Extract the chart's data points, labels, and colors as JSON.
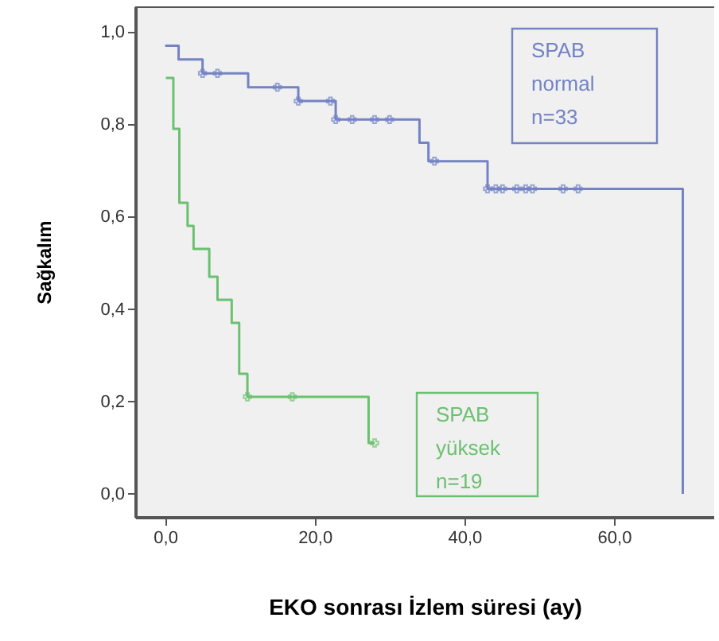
{
  "chart_data": {
    "type": "step",
    "xlabel": "EKO sonrası İzlem süresi (ay)",
    "ylabel": "Sağkalım",
    "xlim": [
      -4,
      73.4
    ],
    "ylim": [
      -0.05,
      1.055
    ],
    "xticks": [
      {
        "value": 0,
        "label": "0,0"
      },
      {
        "value": 20,
        "label": "20,0"
      },
      {
        "value": 40,
        "label": "40,0"
      },
      {
        "value": 60,
        "label": "60,0"
      }
    ],
    "yticks": [
      {
        "value": 0,
        "label": "0,0"
      },
      {
        "value": 0.2,
        "label": "0,2"
      },
      {
        "value": 0.4,
        "label": "0,4"
      },
      {
        "value": 0.6,
        "label": "0,6"
      },
      {
        "value": 0.8,
        "label": "0,8"
      },
      {
        "value": 1.0,
        "label": "1,0"
      }
    ],
    "grid": false,
    "legend": false,
    "series": [
      {
        "name": "SPAB normal n=33",
        "color": "#7383c4",
        "x": [
          0,
          1.8,
          5.0,
          11.1,
          17.8,
          22.8,
          34.0,
          35.2,
          43.1,
          69.2,
          69.2
        ],
        "values": [
          0.97,
          0.94,
          0.91,
          0.88,
          0.85,
          0.81,
          0.76,
          0.72,
          0.66,
          0.66,
          0
        ]
      },
      {
        "name": "SPAB yüksek n=19",
        "color": "#6cc071",
        "x": [
          0.1,
          1.1,
          1.9,
          3.0,
          3.8,
          5.9,
          7.0,
          8.9,
          9.9,
          11.0,
          27.2,
          28.0
        ],
        "values": [
          0.9,
          0.79,
          0.63,
          0.58,
          0.53,
          0.47,
          0.42,
          0.37,
          0.26,
          0.21,
          0.11,
          0.11
        ]
      },
      {
        "color": "#7383c4",
        "type": "scatter",
        "marker": "cross",
        "x": [
          5.0,
          7.0,
          15.0,
          17.8,
          22.1,
          22.8,
          25.0,
          28.0,
          30.0,
          36.0,
          43.1,
          44.2,
          45.1,
          47.0,
          48.2,
          49.1,
          53.2,
          55.2
        ],
        "values": [
          0.91,
          0.91,
          0.88,
          0.85,
          0.85,
          0.81,
          0.81,
          0.81,
          0.81,
          0.72,
          0.66,
          0.66,
          0.66,
          0.66,
          0.66,
          0.66,
          0.66,
          0.66
        ]
      },
      {
        "color": "#6cc071",
        "type": "scatter",
        "marker": "cross",
        "x": [
          11.0,
          17.0,
          28.0
        ],
        "values": [
          0.21,
          0.21,
          0.11
        ]
      }
    ]
  }
}
